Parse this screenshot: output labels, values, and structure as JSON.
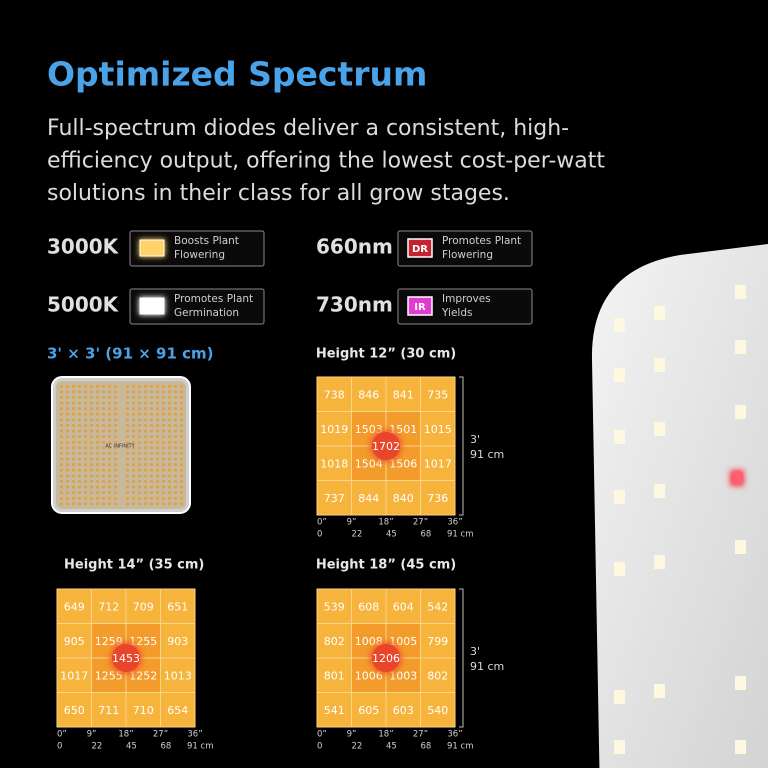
{
  "header": {
    "title": "Optimized Spectrum",
    "description": [
      "Full-spectrum diodes deliver a consistent, high-",
      "efficiency output, offering the lowest cost-per-watt",
      "solutions in their class for all grow stages."
    ]
  },
  "legend": [
    {
      "label": "3000K",
      "text": [
        "Boosts Plant",
        "Flowering"
      ]
    },
    {
      "label": "660nm",
      "badge": "DR",
      "text": [
        "Promotes Plant",
        "Flowering"
      ]
    },
    {
      "label": "5000K",
      "text": [
        "Promotes Plant",
        "Germination"
      ]
    },
    {
      "label": "730nm",
      "badge": "IR",
      "text": [
        "Improves",
        "Yields"
      ]
    }
  ],
  "board": {
    "caption": "3' × 3' (91 × 91 cm)",
    "brand": "AC INFINITY"
  },
  "grids": [
    {
      "title": "Height 12” (30 cm)",
      "rows": [
        [
          738,
          846,
          841,
          735
        ],
        [
          1019,
          1503,
          1501,
          1015
        ],
        [
          1018,
          1504,
          1506,
          1017
        ],
        [
          737,
          844,
          840,
          736
        ]
      ],
      "center": 1702,
      "side": [
        "3'",
        "91 cm"
      ],
      "ticks_in": [
        "0”",
        "9”",
        "18”",
        "27”",
        "36”"
      ],
      "ticks_cm": [
        "0",
        "22",
        "45",
        "68",
        "91 cm"
      ]
    },
    {
      "title": "Height 14” (35 cm)",
      "rows": [
        [
          649,
          712,
          709,
          651
        ],
        [
          905,
          1259,
          1255,
          903
        ],
        [
          1017,
          1255,
          1252,
          1013
        ],
        [
          650,
          711,
          710,
          654
        ]
      ],
      "center": 1453,
      "ticks_in": [
        "0”",
        "9”",
        "18”",
        "27”",
        "36”"
      ],
      "ticks_cm": [
        "0",
        "22",
        "45",
        "68",
        "91 cm"
      ]
    },
    {
      "title": "Height 18” (45 cm)",
      "rows": [
        [
          539,
          608,
          604,
          542
        ],
        [
          802,
          1008,
          1005,
          799
        ],
        [
          801,
          1006,
          1003,
          802
        ],
        [
          541,
          605,
          603,
          540
        ]
      ],
      "center": 1206,
      "side": [
        "3'",
        "91 cm"
      ],
      "ticks_in": [
        "0”",
        "9”",
        "18”",
        "27”",
        "36”"
      ],
      "ticks_cm": [
        "0",
        "22",
        "45",
        "68",
        "91 cm"
      ]
    }
  ]
}
